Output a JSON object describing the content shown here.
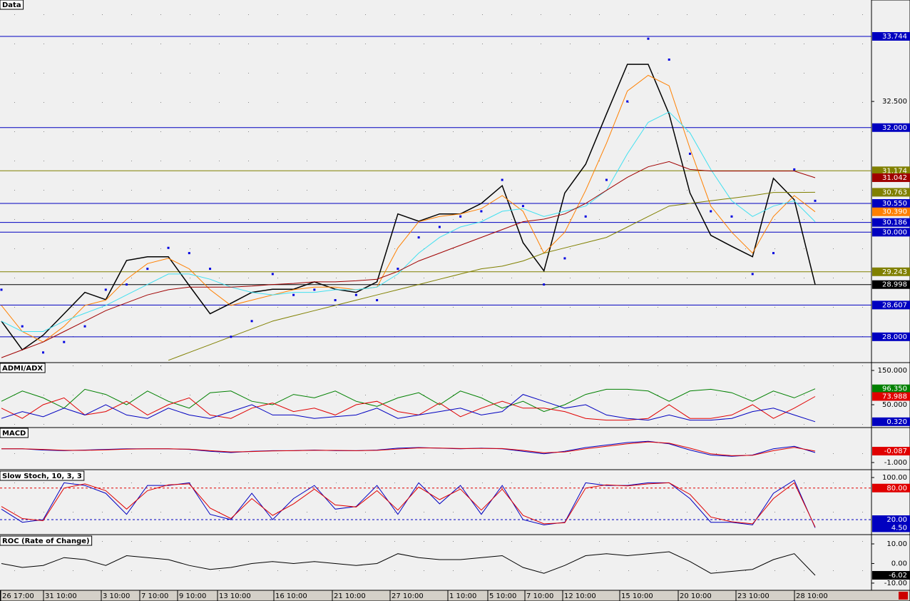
{
  "chart_data": [
    {
      "type": "line",
      "title": "Data",
      "ylim": [
        27.52,
        34.44
      ],
      "yticks": [
        {
          "value": 32.5,
          "label": "32.500"
        }
      ],
      "levels": [
        {
          "value": 33.744,
          "label": "33.744",
          "color": "#0000c0",
          "hline": true
        },
        {
          "value": 32,
          "label": "32.000",
          "color": "#0000c0",
          "hline": true
        },
        {
          "value": 31.174,
          "label": "31.174",
          "color": "#808000",
          "hline": true
        },
        {
          "value": 31.042,
          "label": "31.042",
          "color": "#a00000",
          "hline": false
        },
        {
          "value": 30.763,
          "label": "30.763",
          "color": "#808000",
          "hline": false
        },
        {
          "value": 30.55,
          "label": "30.550",
          "color": "#0000c0",
          "hline": true
        },
        {
          "value": 30.39,
          "label": "30.390",
          "color": "#ff8000",
          "hline": false
        },
        {
          "value": 30.186,
          "label": "30.186",
          "color": "#0000c0",
          "hline": true
        },
        {
          "value": 30,
          "label": "30.000",
          "color": "#0000c0",
          "hline": true
        },
        {
          "value": 29.243,
          "label": "29.243",
          "color": "#808000",
          "hline": true
        },
        {
          "value": 28.998,
          "label": "28.998",
          "color": "#000000",
          "hline": true
        },
        {
          "value": 28.607,
          "label": "28.607",
          "color": "#0000c0",
          "hline": true
        },
        {
          "value": 28,
          "label": "28.000",
          "color": "#0000c0",
          "hline": true
        }
      ],
      "series": [
        {
          "color": "#000000",
          "values": [
            28.3,
            27.75,
            28.03,
            28.44,
            28.85,
            28.71,
            29.46,
            29.53,
            29.53,
            28.98,
            28.44,
            28.64,
            28.85,
            28.91,
            28.91,
            29.05,
            28.91,
            28.85,
            29.05,
            30.35,
            30.21,
            30.35,
            30.35,
            30.55,
            30.89,
            29.8,
            29.26,
            30.75,
            31.3,
            32.26,
            33.21,
            33.21,
            32.26,
            30.75,
            29.94,
            29.73,
            29.53,
            31.03,
            30.62,
            28.998
          ]
        },
        {
          "color": "#ff8000",
          "values": [
            28.6,
            28.1,
            27.9,
            28.2,
            28.6,
            28.7,
            29.1,
            29.4,
            29.5,
            29.3,
            28.9,
            28.6,
            28.7,
            28.8,
            28.9,
            28.95,
            28.95,
            28.9,
            28.95,
            29.7,
            30.2,
            30.3,
            30.35,
            30.45,
            30.7,
            30.4,
            29.6,
            30.0,
            30.8,
            31.7,
            32.7,
            33.0,
            32.8,
            31.6,
            30.5,
            30.0,
            29.6,
            30.3,
            30.7,
            30.39
          ]
        },
        {
          "color": "#40e0f0",
          "values": [
            28.3,
            28.1,
            28.1,
            28.3,
            28.45,
            28.6,
            28.8,
            29.0,
            29.2,
            29.2,
            29.1,
            28.95,
            28.85,
            28.8,
            28.85,
            28.85,
            28.9,
            28.9,
            28.95,
            29.2,
            29.6,
            29.9,
            30.1,
            30.2,
            30.4,
            30.45,
            30.3,
            30.4,
            30.5,
            30.8,
            31.5,
            32.1,
            32.3,
            31.9,
            31.2,
            30.6,
            30.3,
            30.5,
            30.6,
            30.2
          ]
        },
        {
          "color": "#a00000",
          "values": [
            27.6,
            27.75,
            27.9,
            28.1,
            28.3,
            28.5,
            28.65,
            28.8,
            28.9,
            28.95,
            28.95,
            28.95,
            28.97,
            29.0,
            29.02,
            29.05,
            29.05,
            29.07,
            29.1,
            29.25,
            29.45,
            29.6,
            29.75,
            29.9,
            30.05,
            30.2,
            30.25,
            30.35,
            30.55,
            30.8,
            31.05,
            31.25,
            31.35,
            31.2,
            31.17,
            31.17,
            31.17,
            31.17,
            31.17,
            31.042
          ]
        },
        {
          "color": "#808000",
          "values": [
            null,
            null,
            null,
            null,
            null,
            null,
            null,
            null,
            27.55,
            27.7,
            27.85,
            28.0,
            28.15,
            28.3,
            28.4,
            28.5,
            28.6,
            28.7,
            28.8,
            28.9,
            29.0,
            29.1,
            29.2,
            29.3,
            29.35,
            29.45,
            29.6,
            29.7,
            29.8,
            29.9,
            30.1,
            30.3,
            30.5,
            30.55,
            30.6,
            30.65,
            30.7,
            30.76,
            30.76,
            30.763
          ]
        },
        {
          "color": "#0000e0",
          "marker": "dots",
          "values": [
            28.9,
            28.2,
            27.7,
            27.9,
            28.2,
            28.9,
            29.0,
            29.3,
            29.7,
            29.6,
            29.3,
            28.0,
            28.3,
            29.2,
            28.8,
            28.9,
            28.7,
            28.8,
            28.7,
            29.3,
            29.9,
            30.1,
            30.3,
            30.4,
            31.0,
            30.5,
            29.0,
            29.5,
            30.3,
            31.0,
            32.5,
            33.7,
            33.3,
            31.5,
            30.4,
            30.3,
            29.2,
            29.6,
            31.2,
            30.6
          ]
        }
      ]
    },
    {
      "type": "line",
      "title": "ADMI/ADX",
      "ylim": [
        -14.6,
        170.8
      ],
      "yticks": [
        {
          "value": 150,
          "label": "150.000"
        },
        {
          "value": 50,
          "label": "50.000"
        }
      ],
      "levels": [
        {
          "value": 96.35,
          "label": "96.350",
          "color": "#008000",
          "hline": false
        },
        {
          "value": 73.988,
          "label": "73.988",
          "color": "#e00000",
          "hline": false
        },
        {
          "value": 0.32,
          "label": "0.320",
          "color": "#0000c0",
          "hline": false
        }
      ],
      "series": [
        {
          "color": "#008000",
          "values": [
            60,
            90,
            70,
            40,
            95,
            80,
            50,
            90,
            60,
            40,
            85,
            90,
            60,
            50,
            80,
            70,
            90,
            60,
            45,
            70,
            85,
            50,
            90,
            70,
            40,
            60,
            30,
            50,
            80,
            95,
            95,
            90,
            60,
            90,
            95,
            85,
            60,
            90,
            70,
            96.35
          ]
        },
        {
          "color": "#e00000",
          "values": [
            40,
            10,
            50,
            70,
            20,
            30,
            60,
            20,
            50,
            70,
            20,
            10,
            40,
            55,
            30,
            40,
            20,
            50,
            60,
            30,
            20,
            55,
            15,
            40,
            60,
            40,
            40,
            30,
            10,
            5,
            5,
            10,
            50,
            10,
            10,
            20,
            50,
            10,
            40,
            73.988
          ]
        },
        {
          "color": "#0000c0",
          "values": [
            10,
            30,
            15,
            40,
            20,
            50,
            20,
            10,
            40,
            20,
            10,
            30,
            50,
            20,
            20,
            10,
            15,
            20,
            40,
            10,
            20,
            30,
            40,
            20,
            30,
            80,
            60,
            40,
            50,
            20,
            10,
            5,
            20,
            5,
            5,
            10,
            30,
            40,
            20,
            0.32
          ]
        }
      ]
    },
    {
      "type": "line",
      "title": "MACD",
      "ylim": [
        -1.514,
        1.743
      ],
      "yticks": [
        {
          "value": -1,
          "label": "-1.000"
        }
      ],
      "levels": [
        {
          "value": -0.087,
          "label": "-0.087",
          "color": "#e00000",
          "hline": false
        }
      ],
      "series": [
        {
          "color": "#0000c0",
          "values": [
            0.1,
            0.1,
            0.0,
            -0.05,
            0.0,
            0.05,
            0.1,
            0.1,
            0.1,
            0.05,
            -0.1,
            -0.2,
            -0.1,
            -0.05,
            -0.05,
            0,
            -0.05,
            -0.05,
            0,
            0.15,
            0.2,
            0.15,
            0.1,
            0.15,
            0.1,
            -0.1,
            -0.3,
            -0.1,
            0.2,
            0.4,
            0.6,
            0.7,
            0.5,
            0.0,
            -0.4,
            -0.5,
            -0.4,
            0.1,
            0.3,
            -0.2
          ]
        },
        {
          "color": "#e00000",
          "values": [
            0.1,
            0.1,
            0.05,
            -0.02,
            -0.02,
            0.02,
            0.07,
            0.1,
            0.1,
            0.07,
            -0.05,
            -0.15,
            -0.12,
            -0.07,
            -0.05,
            -0.02,
            -0.03,
            -0.05,
            -0.02,
            0.08,
            0.17,
            0.16,
            0.12,
            0.13,
            0.12,
            -0.03,
            -0.22,
            -0.15,
            0.1,
            0.3,
            0.5,
            0.65,
            0.55,
            0.15,
            -0.3,
            -0.45,
            -0.42,
            -0.05,
            0.22,
            -0.087
          ]
        }
      ]
    },
    {
      "type": "line",
      "title": "Slow Stoch, 10, 3, 3",
      "ylim": [
        -7.1,
        112.2
      ],
      "yticks": [
        {
          "value": 100,
          "label": "100.00"
        }
      ],
      "levels": [
        {
          "value": 80,
          "label": "80.00",
          "color": "#e00000",
          "hline": true,
          "dashed": true
        },
        {
          "value": 20,
          "label": "20.00",
          "color": "#0000c0",
          "hline": true,
          "dashed": true
        },
        {
          "value": 4.5,
          "label": "4.50",
          "color": "#0000c0",
          "hline": false
        }
      ],
      "series": [
        {
          "color": "#0000c0",
          "values": [
            40,
            15,
            20,
            90,
            85,
            70,
            30,
            85,
            85,
            90,
            30,
            20,
            70,
            20,
            60,
            85,
            40,
            45,
            85,
            30,
            90,
            50,
            85,
            30,
            85,
            20,
            10,
            15,
            90,
            85,
            85,
            90,
            90,
            60,
            15,
            15,
            10,
            70,
            95,
            4.5
          ]
        },
        {
          "color": "#e00000",
          "values": [
            45,
            22,
            18,
            80,
            88,
            75,
            40,
            75,
            86,
            88,
            42,
            22,
            60,
            28,
            50,
            78,
            48,
            44,
            75,
            38,
            82,
            58,
            78,
            38,
            78,
            28,
            12,
            14,
            80,
            86,
            84,
            88,
            90,
            68,
            25,
            16,
            12,
            60,
            90,
            6
          ]
        }
      ]
    },
    {
      "type": "line",
      "title": "ROC (Rate of Change)",
      "ylim": [
        -13.3,
        14.0
      ],
      "yticks": [
        {
          "value": 10,
          "label": "10.00"
        },
        {
          "value": 0,
          "label": "0.00"
        },
        {
          "value": -10,
          "label": "-10.00"
        }
      ],
      "levels": [
        {
          "value": -6.02,
          "label": "-6.02",
          "color": "#000000",
          "hline": false
        }
      ],
      "series": [
        {
          "color": "#000000",
          "values": [
            0,
            -2,
            -1,
            3,
            2,
            -1,
            4,
            3,
            2,
            -1,
            -3,
            -2,
            0,
            1,
            0,
            1,
            0,
            -1,
            0,
            5,
            3,
            2,
            2,
            3,
            4,
            -2,
            -5,
            -1,
            4,
            5,
            4,
            5,
            6,
            1,
            -5,
            -4,
            -3,
            2,
            5,
            -6.02
          ]
        }
      ]
    }
  ],
  "time_axis": {
    "labels": [
      "26 17:00",
      "31 10:00",
      "3 10:00",
      "7 10:00",
      "9 10:00",
      "13 10:00",
      "16 10:00",
      "21 10:00",
      "27 10:00",
      "1 10:00",
      "5 10:00",
      "7 10:00",
      "12 10:00",
      "15 10:00",
      "20 10:00",
      "23 10:00",
      "28 10:00"
    ]
  }
}
